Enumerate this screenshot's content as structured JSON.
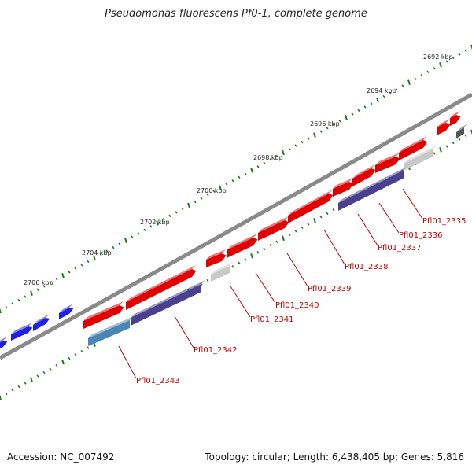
{
  "title": "Pseudomonas fluorescens Pf0-1, complete genome",
  "footer": {
    "accession": "Accession: NC_007492",
    "summary": "Topology: circular; Length: 6,438,405 bp; Genes: 5,816"
  },
  "colors": {
    "backbone": "#8a8a8a",
    "tick": "#1f7a1f",
    "forward_cds": "#e00000",
    "reverse_cds": "#4b3f8f",
    "blast_hit": "#2020e0",
    "other_feature": "#c8c8c8",
    "rrna": "#4a86b5",
    "label": "#cc0000"
  },
  "kbp_labels": [
    "2692 kbp",
    "2694 kbp",
    "2696 kbp",
    "2698 kbp",
    "2700 kbp",
    "2702 kbp",
    "2704 kbp",
    "2706 kbp"
  ],
  "gene_labels": [
    "Pfl01_2335",
    "Pfl01_2336",
    "Pfl01_2337",
    "Pfl01_2338",
    "Pfl01_2339",
    "Pfl01_2340",
    "Pfl01_2341",
    "Pfl01_2342",
    "Pfl01_2343"
  ]
}
